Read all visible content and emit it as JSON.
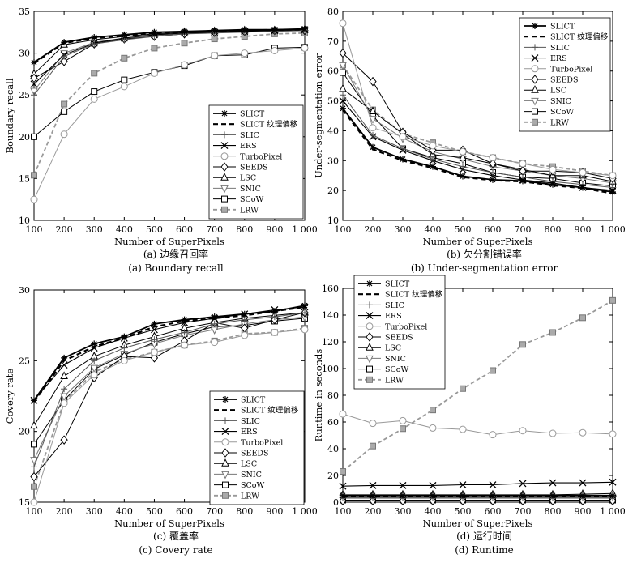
{
  "chart_data": [
    {
      "type": "line",
      "caption_cn": "(a) 边缘召回率",
      "caption_en": "(a) Boundary recall",
      "xlabel": "Number of SuperPixels",
      "ylabel": "Boundary recall",
      "x": [
        100,
        200,
        300,
        400,
        500,
        600,
        700,
        800,
        900,
        1000
      ],
      "x_tick_labels": [
        "100",
        "200",
        "300",
        "400",
        "500",
        "600",
        "700",
        "800",
        "900",
        "1 000"
      ],
      "xlim": [
        100,
        1000
      ],
      "ylim": [
        10,
        35
      ],
      "y_ticks": [
        10,
        15,
        20,
        25,
        30,
        35
      ],
      "legend_position": "bottom-right",
      "series": [
        {
          "name": "SLICT",
          "values": [
            28.9,
            31.3,
            31.9,
            32.2,
            32.5,
            32.6,
            32.7,
            32.8,
            32.8,
            32.9
          ]
        },
        {
          "name": "SLICT 纹理偏移",
          "values": [
            28.8,
            31.2,
            31.8,
            32.1,
            32.4,
            32.5,
            32.6,
            32.7,
            32.8,
            32.8
          ]
        },
        {
          "name": "SLIC",
          "values": [
            25.0,
            29.6,
            31.1,
            31.6,
            32.0,
            32.3,
            32.4,
            32.5,
            32.6,
            32.7
          ]
        },
        {
          "name": "ERS",
          "values": [
            26.3,
            29.8,
            31.2,
            31.8,
            32.2,
            32.4,
            32.5,
            32.6,
            32.7,
            32.8
          ]
        },
        {
          "name": "TurboPixel",
          "values": [
            12.5,
            20.3,
            24.5,
            26.0,
            27.6,
            28.6,
            29.7,
            30.0,
            30.3,
            30.6
          ]
        },
        {
          "name": "SEEDS",
          "values": [
            27.0,
            29.0,
            31.1,
            31.7,
            32.0,
            32.3,
            32.5,
            32.6,
            32.7,
            32.7
          ]
        },
        {
          "name": "LSC",
          "values": [
            27.5,
            31.0,
            31.6,
            32.0,
            32.3,
            32.5,
            32.6,
            32.7,
            32.7,
            32.8
          ]
        },
        {
          "name": "SNIC",
          "values": [
            25.5,
            30.0,
            31.3,
            31.8,
            32.1,
            32.4,
            32.5,
            32.6,
            32.7,
            32.7
          ]
        },
        {
          "name": "SCoW",
          "values": [
            20.0,
            23.0,
            25.4,
            26.8,
            27.7,
            28.5,
            29.7,
            29.8,
            30.6,
            30.7
          ]
        },
        {
          "name": "LRW",
          "values": [
            15.4,
            23.9,
            27.6,
            29.4,
            30.6,
            31.2,
            31.7,
            32.0,
            32.3,
            32.4
          ]
        }
      ]
    },
    {
      "type": "line",
      "caption_cn": "(b) 欠分割错误率",
      "caption_en": "(b) Under-segmentation error",
      "xlabel": "Number of SuperPixels",
      "ylabel": "Under-segmentation error",
      "x": [
        100,
        200,
        300,
        400,
        500,
        600,
        700,
        800,
        900,
        1000
      ],
      "x_tick_labels": [
        "100",
        "200",
        "300",
        "400",
        "500",
        "600",
        "700",
        "800",
        "900",
        "1 000"
      ],
      "xlim": [
        100,
        1000
      ],
      "ylim": [
        10,
        80
      ],
      "y_ticks": [
        10,
        20,
        30,
        40,
        50,
        60,
        70,
        80
      ],
      "legend_position": "top-right",
      "series": [
        {
          "name": "SLICT",
          "values": [
            47.5,
            34.5,
            30.5,
            28.0,
            24.8,
            23.6,
            23.2,
            22.0,
            21.0,
            19.5
          ]
        },
        {
          "name": "SLICT 纹理偏移",
          "values": [
            47.0,
            33.8,
            30.0,
            27.5,
            24.5,
            23.4,
            23.0,
            21.7,
            20.8,
            19.0
          ]
        },
        {
          "name": "SLIC",
          "values": [
            52.0,
            38.5,
            34.0,
            30.5,
            28.0,
            26.0,
            24.5,
            23.0,
            22.0,
            21.0
          ]
        },
        {
          "name": "ERS",
          "values": [
            50.0,
            38.0,
            33.5,
            30.0,
            27.0,
            25.0,
            23.5,
            22.5,
            21.0,
            20.0
          ]
        },
        {
          "name": "TurboPixel",
          "values": [
            76.0,
            41.0,
            38.0,
            35.0,
            33.0,
            31.0,
            29.0,
            27.0,
            26.0,
            25.0
          ]
        },
        {
          "name": "SEEDS",
          "values": [
            66.0,
            56.5,
            39.5,
            33.5,
            33.5,
            29.0,
            26.5,
            26.5,
            26.0,
            24.0
          ]
        },
        {
          "name": "LSC",
          "values": [
            54.0,
            46.5,
            39.0,
            32.0,
            31.0,
            29.0,
            27.0,
            25.0,
            25.0,
            23.0
          ]
        },
        {
          "name": "SNIC",
          "values": [
            62.0,
            44.0,
            37.5,
            33.0,
            30.5,
            28.0,
            26.5,
            25.0,
            24.0,
            22.5
          ]
        },
        {
          "name": "SCoW",
          "values": [
            59.5,
            45.0,
            34.0,
            31.0,
            29.0,
            26.0,
            24.5,
            24.0,
            22.5,
            21.5
          ]
        },
        {
          "name": "LRW",
          "values": [
            62.0,
            47.0,
            39.0,
            36.0,
            33.0,
            31.0,
            29.0,
            28.0,
            26.5,
            25.0
          ]
        }
      ]
    },
    {
      "type": "line",
      "caption_cn": "(c) 覆盖率",
      "caption_en": "(c) Covery rate",
      "xlabel": "Number of SuperPixels",
      "ylabel": "Covery rate",
      "x": [
        100,
        200,
        300,
        400,
        500,
        600,
        700,
        800,
        900,
        1000
      ],
      "x_tick_labels": [
        "100",
        "200",
        "300",
        "400",
        "500",
        "600",
        "700",
        "800",
        "900",
        "1 000"
      ],
      "xlim": [
        100,
        1000
      ],
      "ylim": [
        15,
        30
      ],
      "y_ticks": [
        15,
        20,
        25,
        30
      ],
      "legend_position": "bottom-right",
      "series": [
        {
          "name": "SLICT",
          "values": [
            22.2,
            25.2,
            26.2,
            26.7,
            27.6,
            27.9,
            28.1,
            28.3,
            28.5,
            28.9
          ]
        },
        {
          "name": "SLICT 纹理偏移",
          "values": [
            22.1,
            25.0,
            26.0,
            26.6,
            27.4,
            27.8,
            28.0,
            28.2,
            28.5,
            28.8
          ]
        },
        {
          "name": "SLIC",
          "values": [
            17.5,
            23.0,
            25.0,
            25.9,
            26.5,
            27.0,
            27.6,
            27.9,
            28.1,
            28.4
          ]
        },
        {
          "name": "ERS",
          "values": [
            22.2,
            24.7,
            25.9,
            26.6,
            27.2,
            27.7,
            28.0,
            28.3,
            28.6,
            28.8
          ]
        },
        {
          "name": "TurboPixel",
          "values": [
            15.0,
            22.0,
            24.0,
            25.0,
            25.6,
            26.1,
            26.3,
            26.8,
            27.0,
            27.2
          ]
        },
        {
          "name": "SEEDS",
          "values": [
            16.8,
            19.4,
            23.8,
            25.3,
            25.2,
            26.4,
            27.7,
            27.3,
            27.9,
            28.4
          ]
        },
        {
          "name": "LSC",
          "values": [
            20.4,
            23.9,
            25.3,
            26.1,
            26.7,
            27.3,
            27.7,
            28.0,
            28.2,
            28.4
          ]
        },
        {
          "name": "SNIC",
          "values": [
            18.0,
            22.5,
            24.5,
            25.5,
            26.2,
            26.8,
            27.2,
            27.6,
            27.9,
            28.1
          ]
        },
        {
          "name": "SCoW",
          "values": [
            19.1,
            22.2,
            24.4,
            25.4,
            26.3,
            26.9,
            27.4,
            27.5,
            27.8,
            28.0
          ]
        },
        {
          "name": "LRW",
          "values": [
            16.1,
            22.1,
            24.2,
            25.1,
            25.6,
            26.1,
            26.4,
            26.9,
            27.0,
            27.3
          ]
        }
      ]
    },
    {
      "type": "line",
      "caption_cn": "(d) 运行时间",
      "caption_en": "(d) Runtime",
      "xlabel": "Number of SuperPixels",
      "ylabel": "Runtime in seconds",
      "x": [
        100,
        200,
        300,
        400,
        500,
        600,
        700,
        800,
        900,
        1000
      ],
      "x_tick_labels": [
        "100",
        "200",
        "300",
        "400",
        "500",
        "600",
        "700",
        "800",
        "900",
        "1 000"
      ],
      "xlim": [
        100,
        1000
      ],
      "ylim": [
        0,
        160
      ],
      "y_ticks": [
        0,
        20,
        40,
        60,
        80,
        100,
        120,
        140,
        160
      ],
      "legend_position": "top-left",
      "series": [
        {
          "name": "SLICT",
          "values": [
            5.0,
            5.0,
            5.0,
            5.0,
            5.0,
            5.0,
            5.0,
            5.0,
            5.0,
            5.0
          ]
        },
        {
          "name": "SLICT 纹理偏移",
          "values": [
            4.5,
            4.5,
            4.5,
            4.5,
            4.5,
            4.5,
            4.5,
            4.5,
            4.5,
            4.5
          ]
        },
        {
          "name": "SLIC",
          "values": [
            3.0,
            3.0,
            3.0,
            3.0,
            3.0,
            3.0,
            3.0,
            3.0,
            3.0,
            3.0
          ]
        },
        {
          "name": "ERS",
          "values": [
            12.0,
            12.5,
            12.5,
            12.5,
            13.0,
            13.0,
            14.0,
            14.5,
            14.5,
            15.0
          ]
        },
        {
          "name": "TurboPixel",
          "values": [
            66.0,
            59.0,
            61.0,
            55.5,
            54.5,
            50.5,
            53.5,
            51.5,
            52.0,
            51.0
          ]
        },
        {
          "name": "SEEDS",
          "values": [
            1.0,
            1.0,
            1.0,
            1.0,
            1.0,
            1.0,
            1.0,
            1.0,
            1.0,
            1.0
          ]
        },
        {
          "name": "LSC",
          "values": [
            5.5,
            5.5,
            5.5,
            5.5,
            5.5,
            5.5,
            5.5,
            5.5,
            6.0,
            6.5
          ]
        },
        {
          "name": "SNIC",
          "values": [
            3.5,
            3.5,
            3.5,
            3.5,
            3.5,
            3.5,
            3.5,
            3.5,
            3.5,
            3.5
          ]
        },
        {
          "name": "SCoW",
          "values": [
            1.5,
            1.5,
            1.5,
            1.5,
            1.5,
            1.5,
            1.5,
            1.5,
            1.5,
            1.5
          ]
        },
        {
          "name": "LRW",
          "values": [
            23.0,
            42.0,
            55.0,
            69.0,
            85.0,
            98.5,
            118.0,
            127.0,
            138.0,
            151.0
          ]
        }
      ]
    }
  ]
}
